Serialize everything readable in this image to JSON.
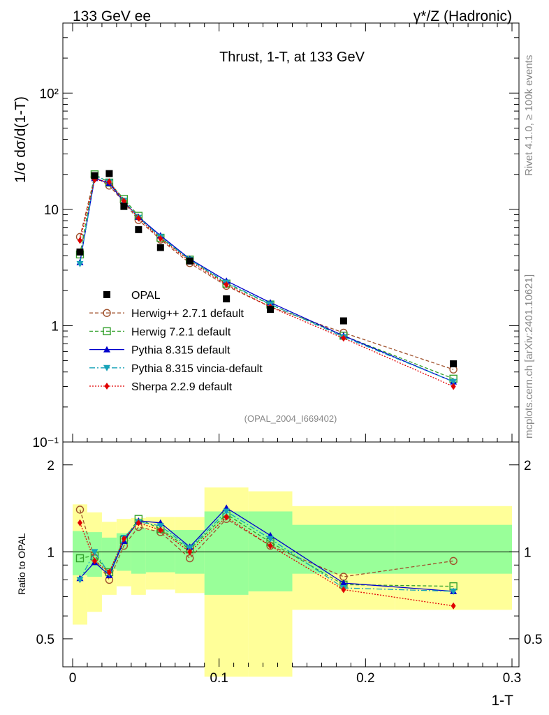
{
  "header": {
    "left": "133 GeV ee",
    "right": "γ*/Z (Hadronic)"
  },
  "side_labels": {
    "rivet": "Rivet 4.1.0, ≥ 100k events",
    "mcplots": "mcplots.cern.ch [arXiv:2401.10621]"
  },
  "chart_data": {
    "type": "line",
    "title": "Thrust, 1-T, at 133 GeV",
    "analysis_id": "(OPAL_2004_I669402)",
    "xlabel": "1-T",
    "ylabel": "1/σ  dσ/d(1-T)",
    "ratio_ylabel": "Ratio to OPAL",
    "xlim": [
      0,
      0.3
    ],
    "ylim": [
      0.1,
      400
    ],
    "yscale": "log",
    "ratio_ylim": [
      0.4,
      2.4
    ],
    "x_ticks": [
      "0",
      "0.1",
      "0.2",
      "0.3"
    ],
    "x_tick_values": [
      0,
      0.1,
      0.2,
      0.3
    ],
    "y_ticks": [
      "10⁻¹",
      "1",
      "10",
      "10²"
    ],
    "y_tick_values": [
      0.1,
      1,
      10,
      100
    ],
    "ratio_ticks": [
      "0.5",
      "1",
      "2"
    ],
    "ratio_tick_values": [
      0.5,
      1,
      2
    ],
    "x": [
      0.005,
      0.015,
      0.025,
      0.035,
      0.045,
      0.06,
      0.08,
      0.105,
      0.135,
      0.185,
      0.26
    ],
    "data": {
      "name": "OPAL",
      "values": [
        4.3,
        19.5,
        20.3,
        10.6,
        6.7,
        4.7,
        3.6,
        1.7,
        1.38,
        1.1,
        0.47
      ],
      "band_inner": [
        [
          0.83,
          1.18
        ],
        [
          0.82,
          1.17
        ],
        [
          0.87,
          1.12
        ],
        [
          0.86,
          1.16
        ],
        [
          0.84,
          1.21
        ],
        [
          0.85,
          1.19
        ],
        [
          0.84,
          1.19
        ],
        [
          0.71,
          1.38
        ],
        [
          0.73,
          1.38
        ],
        [
          0.84,
          1.24
        ],
        [
          0.84,
          1.24
        ]
      ],
      "band_outer": [
        [
          0.56,
          1.46
        ],
        [
          0.62,
          1.37
        ],
        [
          0.71,
          1.27
        ],
        [
          0.76,
          1.3
        ],
        [
          0.71,
          1.31
        ],
        [
          0.74,
          1.32
        ],
        [
          0.72,
          1.32
        ],
        [
          0.37,
          1.67
        ],
        [
          0.37,
          1.62
        ],
        [
          0.63,
          1.44
        ],
        [
          0.63,
          1.44
        ]
      ],
      "band_edges": [
        0,
        0.01,
        0.02,
        0.03,
        0.04,
        0.05,
        0.07,
        0.09,
        0.12,
        0.15,
        0.22,
        0.3
      ]
    },
    "series": [
      {
        "name": "Herwig++ 2.7.1 default",
        "color": "#a0522d",
        "dash": "5,3",
        "marker": "circle-open",
        "values": [
          5.8,
          19.0,
          16.0,
          11.5,
          8.1,
          5.5,
          3.45,
          2.2,
          1.45,
          0.87,
          0.42
        ],
        "ratio": [
          1.4,
          0.95,
          0.8,
          1.05,
          1.22,
          1.17,
          0.95,
          1.3,
          1.05,
          0.82,
          0.93
        ]
      },
      {
        "name": "Herwig 7.2.1 default",
        "color": "#33a02c",
        "dash": "5,3",
        "marker": "square-open",
        "values": [
          4.1,
          20.0,
          17.0,
          12.3,
          8.8,
          5.7,
          3.7,
          2.3,
          1.52,
          0.82,
          0.35
        ],
        "ratio": [
          0.95,
          0.97,
          0.85,
          1.1,
          1.3,
          1.2,
          1.02,
          1.35,
          1.08,
          0.77,
          0.76
        ]
      },
      {
        "name": "Pythia 8.315 default",
        "color": "#0000cc",
        "dash": "",
        "marker": "triangle-up",
        "values": [
          3.5,
          18.5,
          16.8,
          11.6,
          8.6,
          5.95,
          3.75,
          2.43,
          1.58,
          0.82,
          0.33
        ],
        "ratio": [
          0.81,
          0.92,
          0.83,
          1.09,
          1.28,
          1.26,
          1.04,
          1.42,
          1.14,
          0.78,
          0.73
        ]
      },
      {
        "name": "Pythia 8.315 vincia-default",
        "color": "#17a2b8",
        "dash": "8,3,2,3",
        "marker": "triangle-down",
        "values": [
          3.4,
          19.6,
          17.2,
          11.9,
          8.5,
          5.8,
          3.7,
          2.35,
          1.53,
          0.8,
          0.33
        ],
        "ratio": [
          0.8,
          1.0,
          0.84,
          1.12,
          1.27,
          1.23,
          1.03,
          1.38,
          1.11,
          0.75,
          0.73
        ]
      },
      {
        "name": "Sherpa 2.2.9 default",
        "color": "#e00000",
        "dash": "2,2",
        "marker": "diamond",
        "values": [
          5.4,
          18.0,
          17.3,
          11.8,
          8.4,
          5.6,
          3.6,
          2.25,
          1.45,
          0.78,
          0.3
        ],
        "ratio": [
          1.26,
          0.93,
          0.85,
          1.11,
          1.26,
          1.19,
          1.0,
          1.32,
          1.05,
          0.74,
          0.65
        ]
      }
    ]
  }
}
